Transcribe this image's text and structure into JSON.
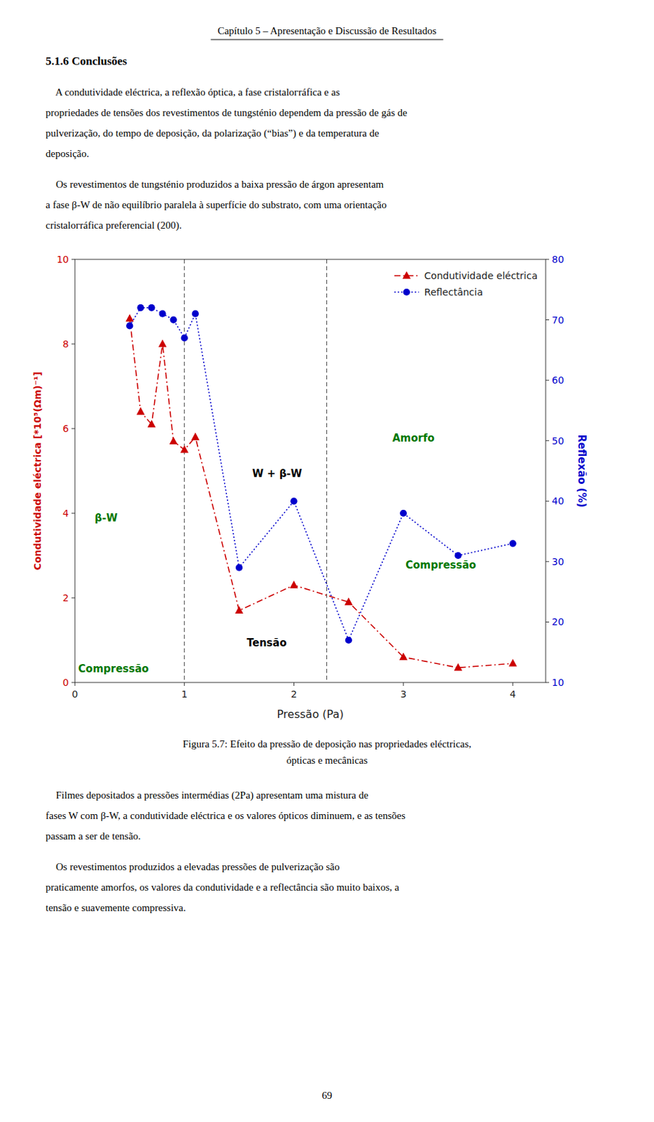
{
  "page": {
    "header": "Capítulo 5 – Apresentação e Discussão de Resultados",
    "section": "5.1.6 Conclusões",
    "paragraphs_top": [
      [
        "    A condutividade eléctrica, a reflexão óptica, a fase cristalогráfica e as",
        "propriedades de tensões dos revestimentos de tungsténio dependem da pressão de gás de",
        "pulverização, do tempo de deposição, da polarização (“bias”) e da temperatura de",
        "deposição."
      ],
      [
        "    Os revestimentos de tungsténio produzidos a baixa pressão de árgon apresentam",
        "a fase β-W de não equilíbrio paralela à superfície do substrato, com uma orientação",
        "cristalогráfica preferencial (200)."
      ]
    ],
    "caption": [
      "Figura 5.7: Efeito da pressão de deposição nas propriedades eléctricas,",
      "ópticas e mecânicas"
    ],
    "paragraphs_bottom": [
      [
        "    Filmes depositados a pressões intermédias (2Pa) apresentam uma mistura de",
        "fases W com β-W, a condutividade eléctrica e os valores ópticos diminuem, e as tensões",
        "passam a ser de tensão."
      ],
      [
        "    Os revestimentos produzidos a elevadas pressões de pulverização são",
        "praticamente amorfos, os valores da condutividade e a reflectância são muito baixos, a",
        "tensão e suavemente compressiva."
      ]
    ],
    "page_number": "69"
  },
  "chart_data": {
    "type": "line",
    "x": [
      0.5,
      0.6,
      0.7,
      0.8,
      0.9,
      1.0,
      1.1,
      1.5,
      2.0,
      2.5,
      3.0,
      3.5,
      4.0
    ],
    "series": [
      {
        "name": "Condutividade eléctrica",
        "color": "#CC0000",
        "marker": "triangle",
        "line_style": "dashdot",
        "values": [
          8.6,
          6.4,
          6.1,
          8.0,
          5.7,
          5.5,
          5.8,
          1.7,
          2.3,
          1.9,
          0.6,
          0.35,
          0.45
        ]
      },
      {
        "name": "Reflectância",
        "color": "#0000CC",
        "marker": "circle",
        "line_style": "dotted",
        "axis": "y2",
        "values": [
          69,
          72,
          72,
          71,
          70,
          67,
          71,
          29,
          40,
          17,
          38,
          31,
          33
        ]
      }
    ],
    "xlabel": "Pressão (Pa)",
    "ylabel": "Condutividade eléctrica [*10⁵(Ωm)⁻¹]",
    "y2label": "Reflexão (%)",
    "xlim": [
      0,
      4.3
    ],
    "ylim": [
      0,
      10
    ],
    "y2lim": [
      10,
      80
    ],
    "xticks": [
      0,
      1,
      2,
      3,
      4
    ],
    "yticks": [
      0,
      2,
      4,
      6,
      8,
      10
    ],
    "y2ticks": [
      10,
      20,
      30,
      40,
      50,
      60,
      70,
      80
    ],
    "vlines": [
      1.0,
      2.3
    ],
    "annotations": [
      {
        "text": "β-W",
        "x": 0.18,
        "y": 3.8,
        "color": "#007700"
      },
      {
        "text": "W + β-W",
        "x": 1.62,
        "y": 4.85,
        "color": "#000000"
      },
      {
        "text": "Amorfo",
        "x": 2.9,
        "y": 5.7,
        "color": "#007700"
      },
      {
        "text": "Compressão",
        "x": 0.03,
        "y": 0.25,
        "color": "#007700"
      },
      {
        "text": "Tensão",
        "x": 1.57,
        "y": 0.85,
        "color": "#000000"
      },
      {
        "text": "Compressão",
        "x": 3.02,
        "y": 2.7,
        "color": "#007700"
      }
    ],
    "legend": "upper right",
    "grid": false
  }
}
